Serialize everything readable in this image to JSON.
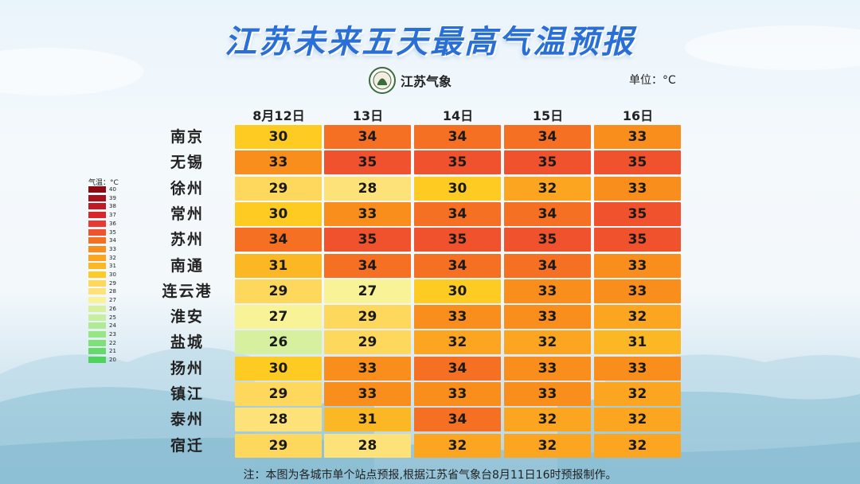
{
  "title": "江苏未来五天最高气温预报",
  "logo_text": "江苏气象",
  "unit_label": "单位：°C",
  "note": "注：本图为各城市单个站点预报,根据江苏省气象台8月11日16时预报制作。",
  "chart_data": {
    "type": "heatmap",
    "days": [
      "8月12日",
      "13日",
      "14日",
      "15日",
      "16日"
    ],
    "cities": [
      "南京",
      "无锡",
      "徐州",
      "常州",
      "苏州",
      "南通",
      "连云港",
      "淮安",
      "盐城",
      "扬州",
      "镇江",
      "泰州",
      "宿迁"
    ],
    "values": [
      [
        30,
        34,
        34,
        34,
        33
      ],
      [
        33,
        35,
        35,
        35,
        35
      ],
      [
        29,
        28,
        30,
        32,
        33
      ],
      [
        30,
        33,
        34,
        34,
        35
      ],
      [
        34,
        35,
        35,
        35,
        35
      ],
      [
        31,
        34,
        34,
        34,
        33
      ],
      [
        29,
        27,
        30,
        33,
        33
      ],
      [
        27,
        29,
        33,
        33,
        32
      ],
      [
        26,
        29,
        32,
        32,
        31
      ],
      [
        30,
        33,
        34,
        33,
        33
      ],
      [
        29,
        33,
        33,
        33,
        32
      ],
      [
        28,
        31,
        34,
        32,
        32
      ],
      [
        29,
        28,
        32,
        32,
        32
      ]
    ],
    "legend": {
      "title": "气温：°C",
      "labels": [
        40,
        39,
        38,
        37,
        36,
        35,
        34,
        33,
        32,
        31,
        30,
        29,
        28,
        27,
        26,
        25,
        24,
        23,
        22,
        21,
        20
      ],
      "colors": {
        "40": "#8b0a14",
        "39": "#a8101c",
        "38": "#c21a24",
        "37": "#d8262a",
        "36": "#e83a30",
        "35": "#f0522e",
        "34": "#f57022",
        "33": "#f98e1c",
        "32": "#fba520",
        "31": "#fcb824",
        "30": "#fdcb22",
        "29": "#fdd85c",
        "28": "#fde27a",
        "27": "#f7f396",
        "26": "#d6f0a0",
        "25": "#c6f0a0",
        "24": "#aeeb94",
        "23": "#96e686",
        "22": "#7fe078",
        "21": "#66d96a",
        "20": "#4fd35e"
      }
    }
  }
}
